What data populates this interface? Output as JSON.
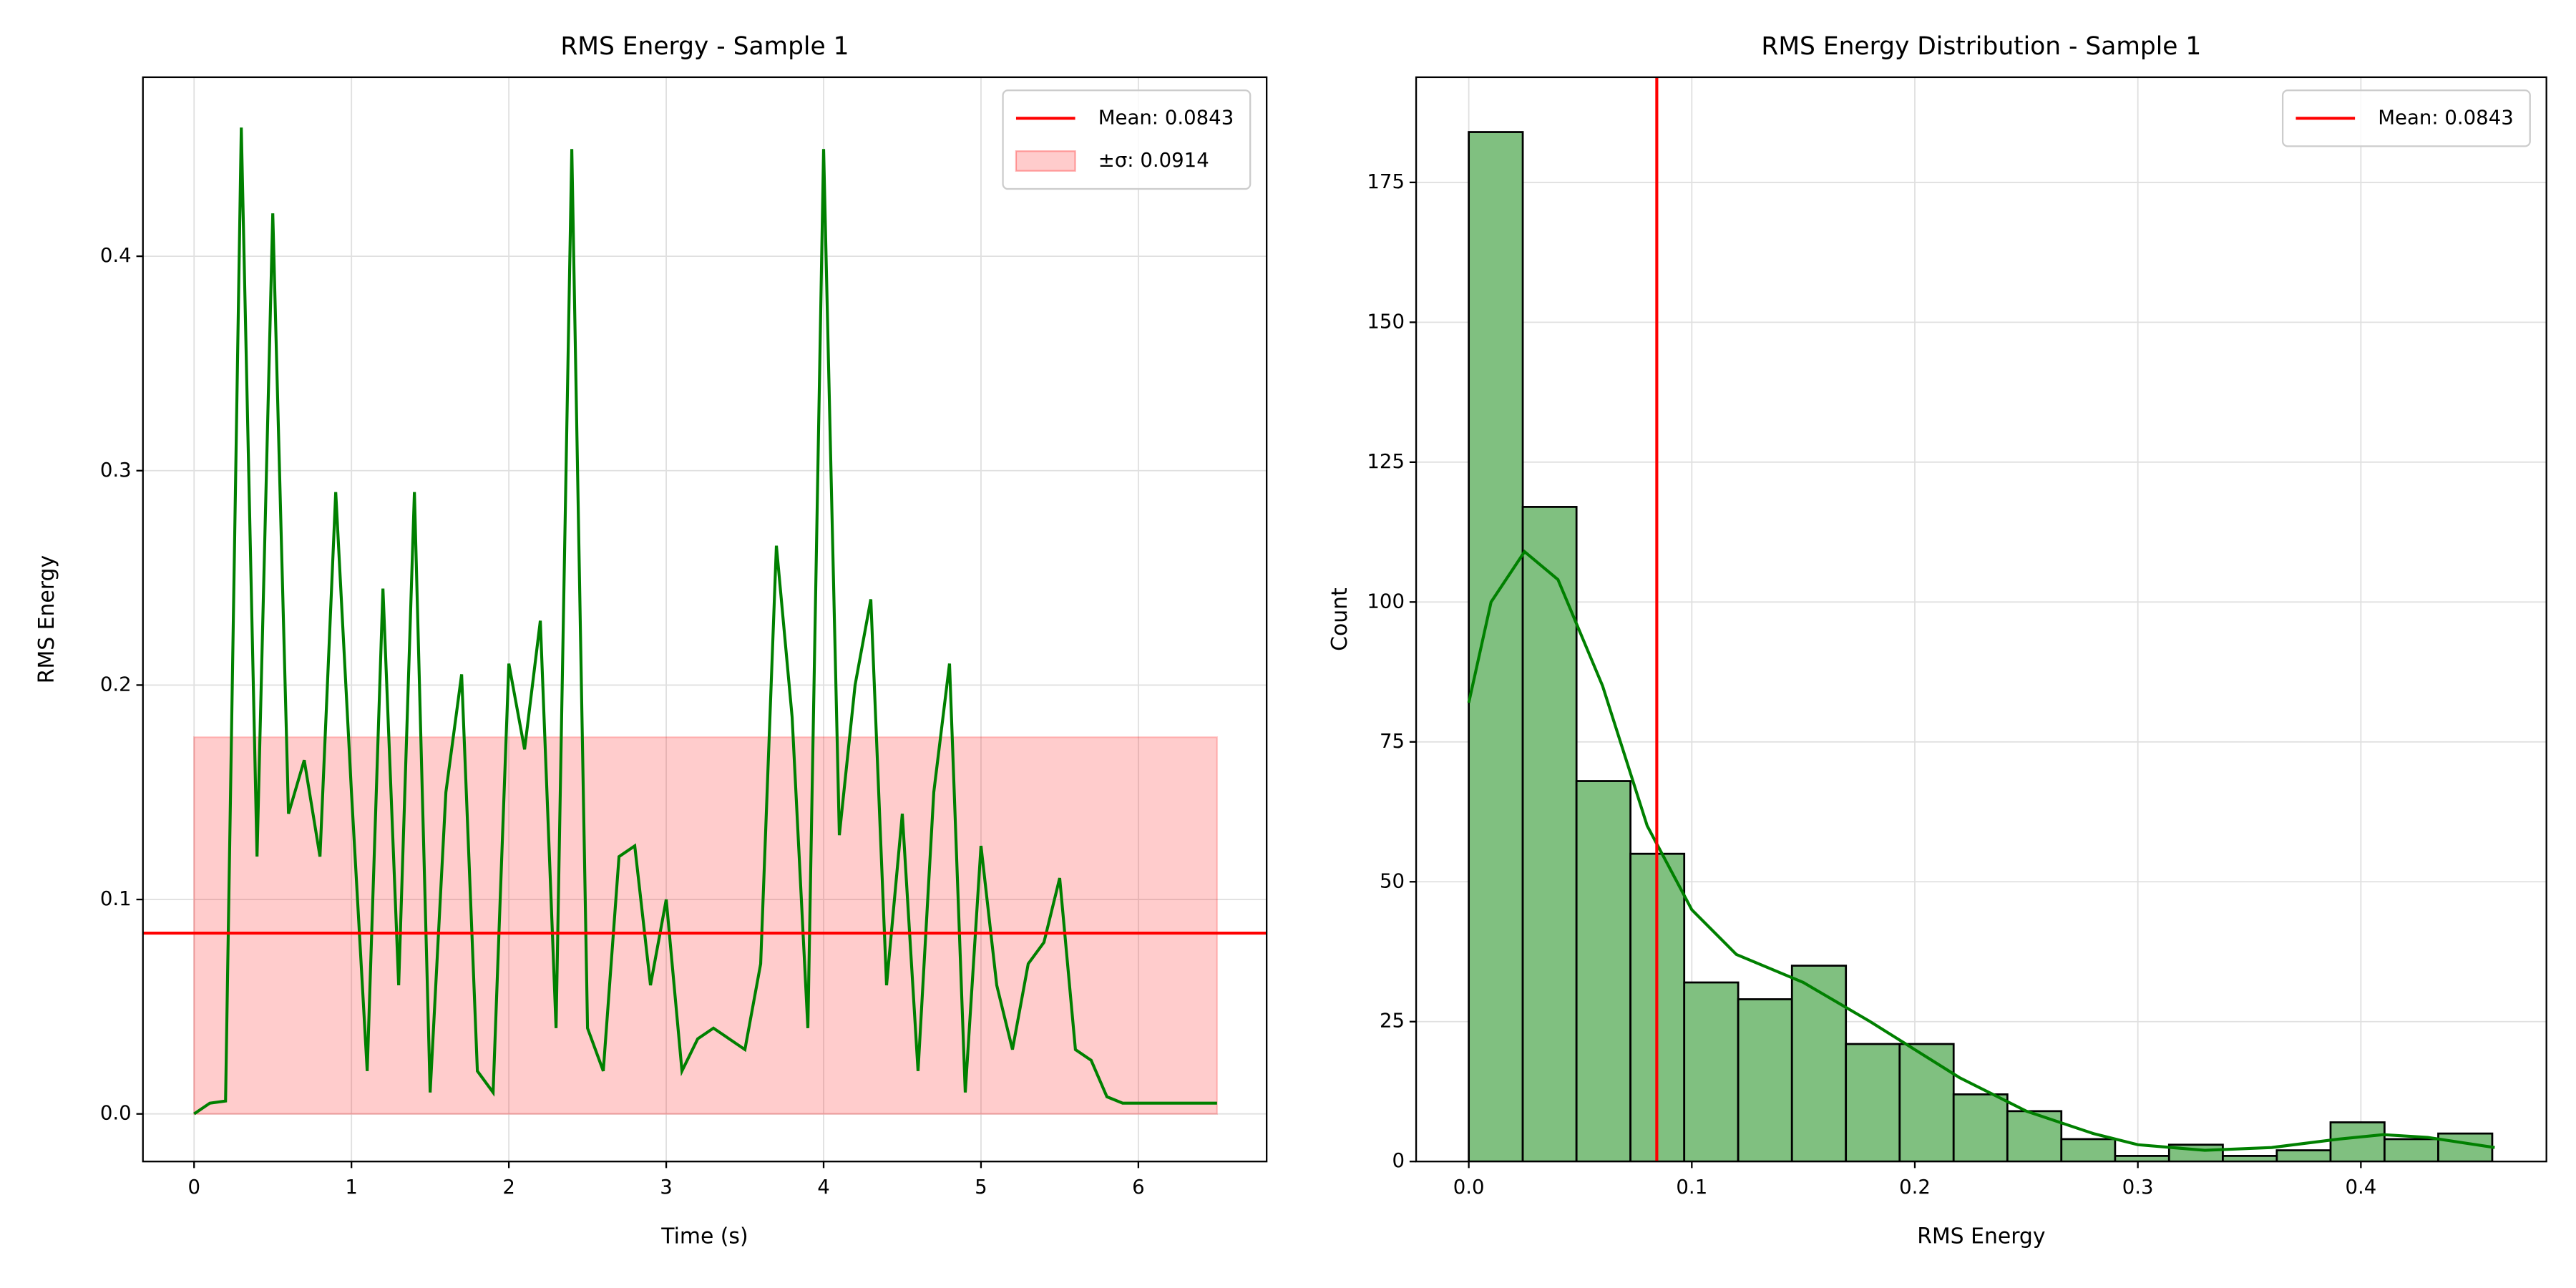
{
  "chart_data": [
    {
      "type": "line",
      "title": "RMS Energy - Sample 1",
      "xlabel": "Time (s)",
      "ylabel": "RMS Energy",
      "x": [
        0,
        0.1,
        0.2,
        0.3,
        0.4,
        0.5,
        0.6,
        0.7,
        0.8,
        0.9,
        1.0,
        1.1,
        1.2,
        1.3,
        1.4,
        1.5,
        1.6,
        1.7,
        1.8,
        1.9,
        2.0,
        2.1,
        2.2,
        2.3,
        2.4,
        2.5,
        2.6,
        2.7,
        2.8,
        2.9,
        3.0,
        3.1,
        3.2,
        3.3,
        3.4,
        3.5,
        3.6,
        3.7,
        3.8,
        3.9,
        4.0,
        4.1,
        4.2,
        4.3,
        4.4,
        4.5,
        4.6,
        4.7,
        4.8,
        4.9,
        5.0,
        5.1,
        5.2,
        5.3,
        5.4,
        5.5,
        5.6,
        5.7,
        5.8,
        5.9,
        6.0,
        6.1,
        6.2,
        6.3,
        6.4,
        6.5
      ],
      "series": [
        {
          "name": "RMS Energy",
          "color": "#008000",
          "values": [
            0,
            0.005,
            0.006,
            0.46,
            0.12,
            0.42,
            0.14,
            0.165,
            0.12,
            0.29,
            0.15,
            0.02,
            0.245,
            0.06,
            0.29,
            0.01,
            0.15,
            0.205,
            0.02,
            0.01,
            0.21,
            0.17,
            0.23,
            0.04,
            0.45,
            0.04,
            0.02,
            0.12,
            0.125,
            0.06,
            0.1,
            0.02,
            0.035,
            0.04,
            0.035,
            0.03,
            0.07,
            0.265,
            0.185,
            0.04,
            0.45,
            0.13,
            0.2,
            0.24,
            0.06,
            0.14,
            0.02,
            0.15,
            0.21,
            0.01,
            0.125,
            0.06,
            0.03,
            0.07,
            0.08,
            0.11,
            0.03,
            0.025,
            0.008,
            0.005,
            0.005,
            0.005,
            0.005,
            0.005,
            0.005,
            0.005
          ]
        }
      ],
      "mean": 0.0843,
      "mean_color": "#ff0000",
      "mean_label": "Mean: 0.0843",
      "band": {
        "lower": 0,
        "upper": 0.1757,
        "color": "#ff0000",
        "label": "±σ: 0.0914"
      },
      "xlim": [
        -0.325,
        6.815
      ],
      "xticks": [
        0,
        1,
        2,
        3,
        4,
        5,
        6
      ],
      "ylim": [
        -0.0222,
        0.4835
      ],
      "yticks": [
        {
          "value": 0,
          "label": "0.0"
        },
        {
          "value": 0.1,
          "label": "0.1"
        },
        {
          "value": 0.2,
          "label": "0.2"
        },
        {
          "value": 0.3,
          "label": "0.3"
        },
        {
          "value": 0.4,
          "label": "0.4"
        }
      ],
      "grid": true,
      "legend": "upper right"
    },
    {
      "type": "histogram",
      "title": "RMS Energy Distribution - Sample 1",
      "xlabel": "RMS Energy",
      "ylabel": "Count",
      "bins": [
        0,
        0.0242,
        0.0483,
        0.0725,
        0.0966,
        0.1208,
        0.1449,
        0.1691,
        0.1932,
        0.2174,
        0.2415,
        0.2657,
        0.2898,
        0.314,
        0.3381,
        0.3623,
        0.3864,
        0.4106,
        0.4347,
        0.4589
      ],
      "counts": [
        184,
        117,
        68,
        55,
        32,
        29,
        35,
        21,
        21,
        12,
        9,
        4,
        1,
        3,
        1,
        2,
        7,
        4,
        5
      ],
      "color": "#80c080",
      "kde": {
        "color": "#008000",
        "x": [
          0,
          0.01,
          0.025,
          0.04,
          0.06,
          0.08,
          0.1,
          0.12,
          0.15,
          0.18,
          0.2,
          0.22,
          0.25,
          0.28,
          0.3,
          0.33,
          0.36,
          0.39,
          0.41,
          0.43,
          0.46
        ],
        "values": [
          82,
          100,
          109,
          104,
          85,
          60,
          45,
          37,
          32,
          25,
          20,
          15,
          9,
          5,
          3,
          2,
          2.5,
          4,
          4.8,
          4.3,
          2.5
        ]
      },
      "mean": 0.0843,
      "mean_color": "#ff0000",
      "mean_label": "Mean: 0.0843",
      "xlim": [
        -0.0236,
        0.4832
      ],
      "xticks": [
        {
          "value": 0,
          "label": "0.0"
        },
        {
          "value": 0.1,
          "label": "0.1"
        },
        {
          "value": 0.2,
          "label": "0.2"
        },
        {
          "value": 0.3,
          "label": "0.3"
        },
        {
          "value": 0.4,
          "label": "0.4"
        }
      ],
      "ylim": [
        0,
        193.8
      ],
      "yticks": [
        0,
        25,
        50,
        75,
        100,
        125,
        150,
        175
      ],
      "grid": true,
      "legend": "upper right"
    }
  ]
}
